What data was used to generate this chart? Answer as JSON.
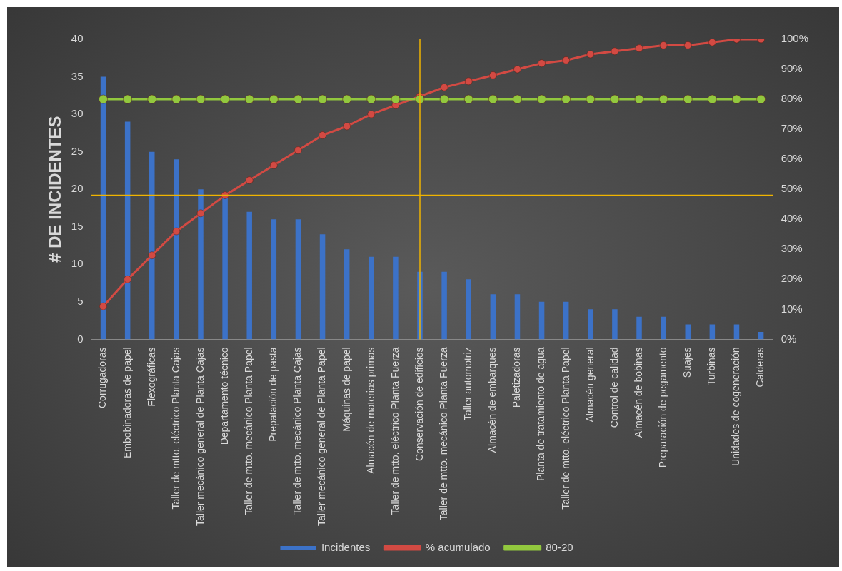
{
  "chart_data": {
    "type": "bar",
    "ylabel": "# DE INCIDENTES",
    "categories": [
      "Corrugadoras",
      "Embobinadoras de papel",
      "Flexográficas",
      "Taller de mtto. eléctrico Planta Cajas",
      "Taller mecánico general de Planta Cajas",
      "Departamento técnico",
      "Taller de mtto. mecánico Planta Papel",
      "Prepatación de pasta",
      "Taller de mtto. mecánico Planta Cajas",
      "Taller mecánico general de Planta Papel",
      "Máquinas de papel",
      "Almacén de materias primas",
      "Taller de mtto. eléctrico Planta Fuerza",
      "Conservación de edificios",
      "Taller de mtto. mecánico Planta Fuerza",
      "Taller automotriz",
      "Almacén de embarques",
      "Paletizadoras",
      "Planta de tratamiento de agua",
      "Taller de mtto. eléctrico Planta Papel",
      "Almacén general",
      "Control de calidad",
      "Almacén de bobinas",
      "Preparación de pegamento",
      "Suajes",
      "Turbinas",
      "Unidades de cogeneración",
      "Calderas"
    ],
    "series": [
      {
        "name": "Incidentes",
        "color": "#3c72c8",
        "values": [
          35,
          29,
          25,
          24,
          20,
          19,
          17,
          16,
          16,
          14,
          12,
          11,
          11,
          9,
          9,
          8,
          6,
          6,
          5,
          5,
          4,
          4,
          3,
          3,
          2,
          2,
          2,
          1
        ]
      },
      {
        "name": "% acumulado",
        "type": "line",
        "axis": "y2",
        "color": "#d24a43",
        "values": [
          11,
          20,
          28,
          36,
          42,
          48,
          53,
          58,
          63,
          68,
          71,
          75,
          78,
          81,
          84,
          86,
          88,
          90,
          92,
          93,
          95,
          96,
          97,
          98,
          98,
          99,
          100,
          100
        ]
      },
      {
        "name": "80-20",
        "type": "line",
        "axis": "y2",
        "color": "#92c83e",
        "values": [
          80,
          80,
          80,
          80,
          80,
          80,
          80,
          80,
          80,
          80,
          80,
          80,
          80,
          80,
          80,
          80,
          80,
          80,
          80,
          80,
          80,
          80,
          80,
          80,
          80,
          80,
          80,
          80
        ]
      }
    ],
    "ylim": [
      0,
      40
    ],
    "yticks": [
      0,
      5,
      10,
      15,
      20,
      25,
      30,
      35,
      40
    ],
    "y2lim": [
      0,
      100
    ],
    "y2ticks": [
      {
        "value": 0,
        "label": "0%"
      },
      {
        "value": 10,
        "label": "10%"
      },
      {
        "value": 20,
        "label": "20%"
      },
      {
        "value": 30,
        "label": "30%"
      },
      {
        "value": 40,
        "label": "40%"
      },
      {
        "value": 50,
        "label": "50%"
      },
      {
        "value": 60,
        "label": "60%"
      },
      {
        "value": 70,
        "label": "70%"
      },
      {
        "value": 80,
        "label": "80%"
      },
      {
        "value": 90,
        "label": "90%"
      },
      {
        "value": 100,
        "label": "100%"
      }
    ],
    "ref_lines": [
      {
        "axis": "y2",
        "value": 48,
        "color": "#f0b400"
      },
      {
        "axis": "x",
        "value": "Conservación de edificios",
        "color": "#f0b400"
      }
    ],
    "marker": "circle",
    "grid": false,
    "legend": "bottom"
  }
}
